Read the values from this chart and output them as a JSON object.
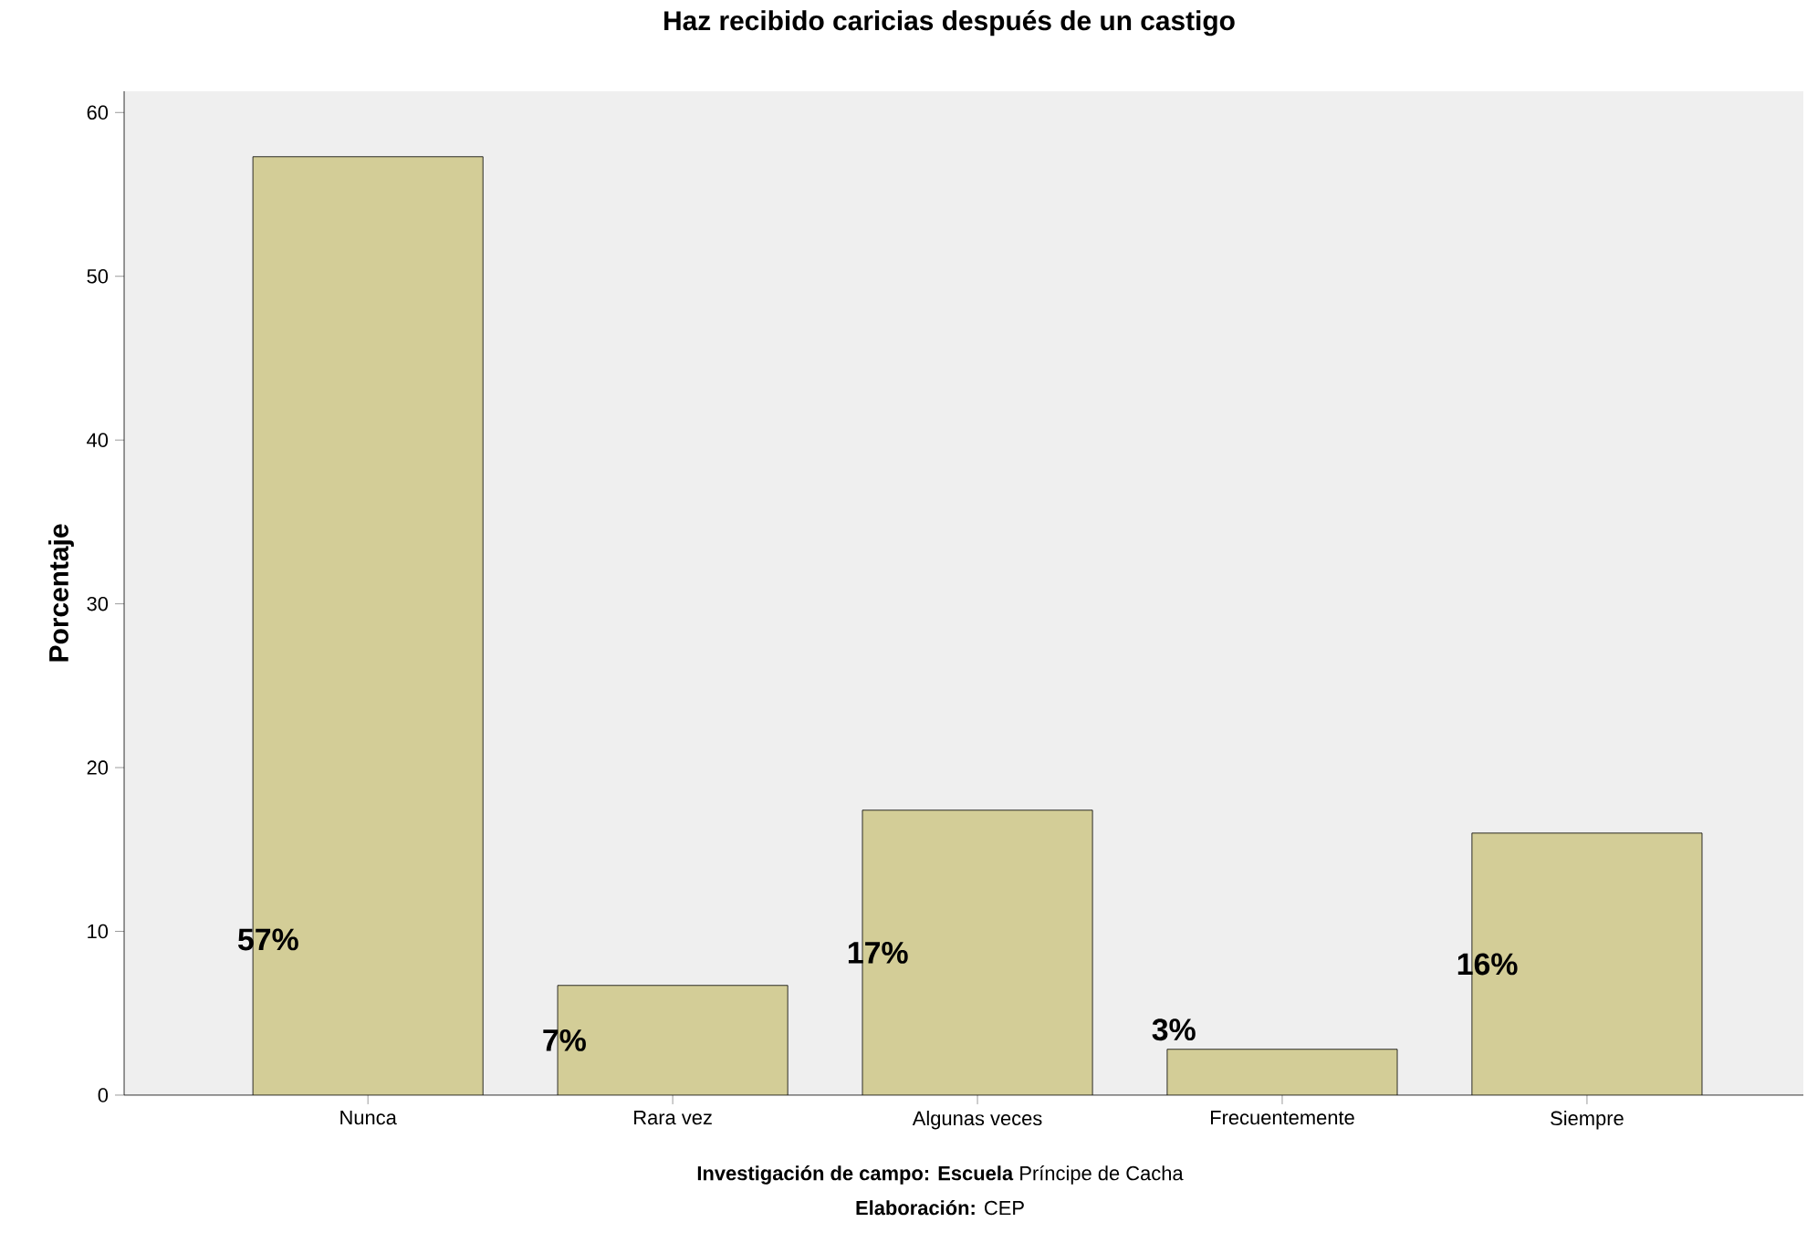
{
  "chart_data": {
    "type": "bar",
    "title": "Haz recibido caricias después de un castigo",
    "ylabel": "Porcentaje",
    "categories": [
      "Nunca",
      "Rara vez",
      "Algunas veces",
      "Frecuentemente",
      "Siempre"
    ],
    "values": [
      57.3,
      6.7,
      17.4,
      2.8,
      16.0
    ],
    "value_labels": [
      "57%",
      "7%",
      "17%",
      "3%",
      "16%"
    ],
    "color": "#d3cd97",
    "ylim": [
      0,
      61.3
    ],
    "yticks": [
      0,
      10,
      20,
      30,
      40,
      50,
      60
    ],
    "annotations": [
      "**Investigación de campo: Escuela** Príncipe de Cacha",
      "**Elaboración:** CEP"
    ]
  }
}
